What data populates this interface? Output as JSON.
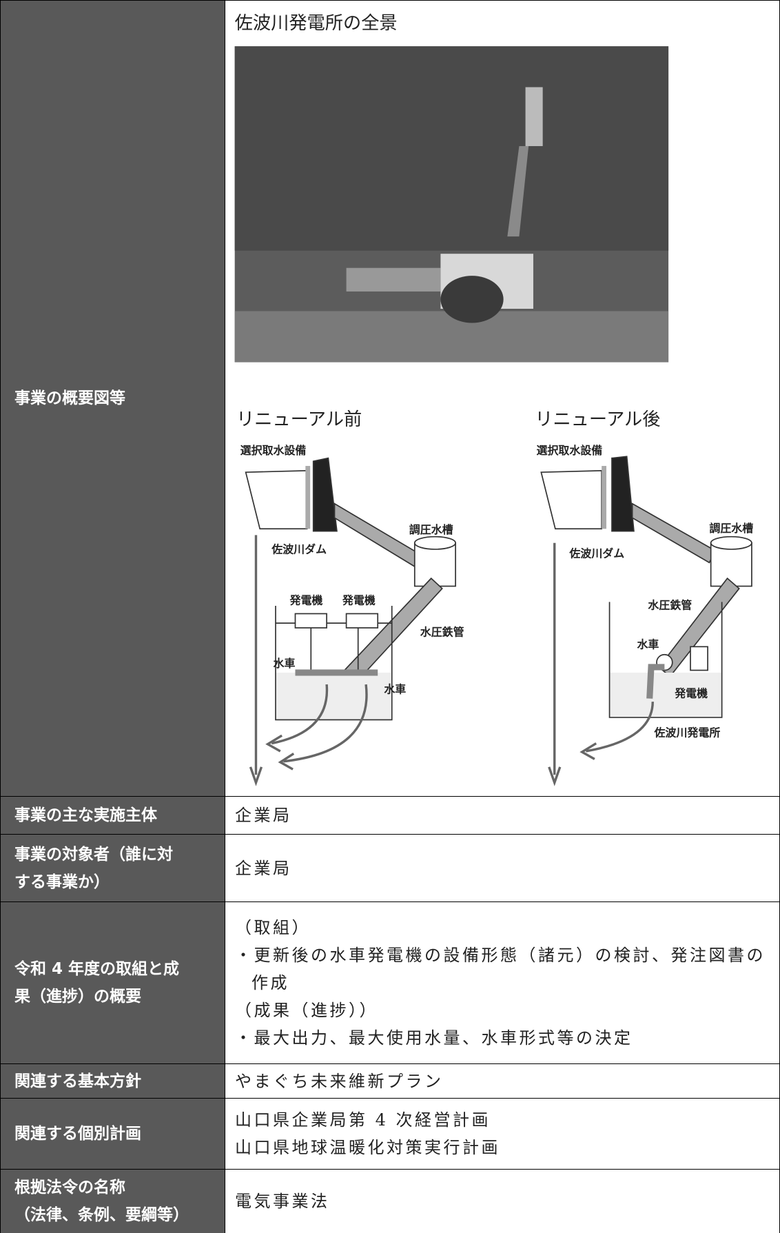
{
  "rows": [
    {
      "header": [
        "事業の概要図等"
      ],
      "photo_caption": "佐波川発電所の全景",
      "before": {
        "title": "リニューアル前",
        "labels": [
          "選択取水設備",
          "佐波川ダム",
          "調圧水槽",
          "発電機",
          "発電機",
          "水圧鉄管",
          "水車",
          "水車"
        ]
      },
      "after": {
        "title": "リニューアル後",
        "labels": [
          "選択取水設備",
          "佐波川ダム",
          "調圧水槽",
          "水圧鉄管",
          "水車",
          "発電機",
          "佐波川発電所"
        ]
      }
    },
    {
      "header": [
        "事業の主な実施主体"
      ],
      "content": [
        "企業局"
      ]
    },
    {
      "header": [
        "事業の対象者（誰に対",
        "する事業か）"
      ],
      "content": [
        "企業局"
      ]
    },
    {
      "header": [
        "令和 4 年度の取組と成",
        "果（進捗）の概要"
      ],
      "content": [
        "（取組）",
        "・更新後の水車発電機の設備形態（諸元）の検討、発注図書の作成",
        "（成果（進捗））",
        "・最大出力、最大使用水量、水車形式等の決定"
      ]
    },
    {
      "header": [
        "関連する基本方針"
      ],
      "content": [
        "やまぐち未来維新プラン"
      ]
    },
    {
      "header": [
        "関連する個別計画"
      ],
      "content": [
        "山口県企業局第 4 次経営計画",
        "山口県地球温暖化対策実行計画"
      ]
    },
    {
      "header": [
        "根拠法令の名称",
        "（法律、条例、要綱等）"
      ],
      "content": [
        "電気事業法"
      ]
    }
  ]
}
